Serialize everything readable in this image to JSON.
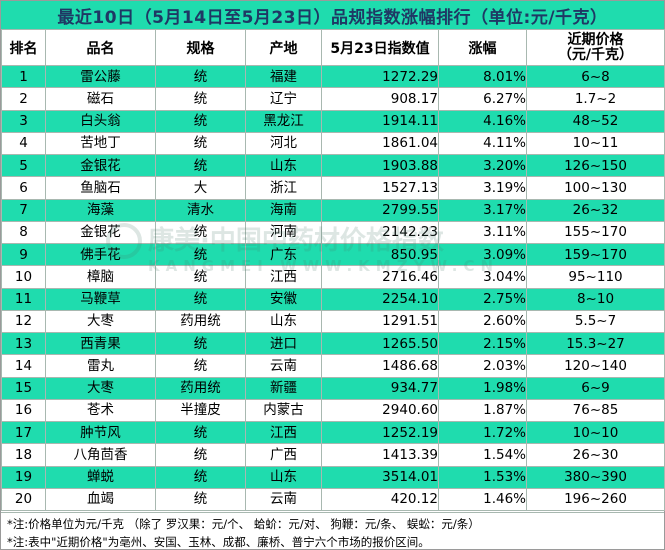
{
  "title": "最近10日（5月14日至5月23日）品规指数涨幅排行（单位:元/千克）",
  "headers": {
    "rank": "排名",
    "name": "品名",
    "spec": "规格",
    "origin": "产地",
    "index": "5月23日指数值",
    "change": "涨幅",
    "price_line1": "近期价格",
    "price_line2": "（元/千克）"
  },
  "rows": [
    {
      "rank": "1",
      "name": "雷公藤",
      "spec": "统",
      "origin": "福建",
      "index": "1272.29",
      "change": "8.01%",
      "price": "6~8"
    },
    {
      "rank": "2",
      "name": "磁石",
      "spec": "统",
      "origin": "辽宁",
      "index": "908.17",
      "change": "6.27%",
      "price": "1.7~2"
    },
    {
      "rank": "3",
      "name": "白头翁",
      "spec": "统",
      "origin": "黑龙江",
      "index": "1914.11",
      "change": "4.16%",
      "price": "48~52"
    },
    {
      "rank": "4",
      "name": "苦地丁",
      "spec": "统",
      "origin": "河北",
      "index": "1861.04",
      "change": "4.11%",
      "price": "10~11"
    },
    {
      "rank": "5",
      "name": "金银花",
      "spec": "统",
      "origin": "山东",
      "index": "1903.88",
      "change": "3.20%",
      "price": "126~150"
    },
    {
      "rank": "6",
      "name": "鱼脑石",
      "spec": "大",
      "origin": "浙江",
      "index": "1527.13",
      "change": "3.19%",
      "price": "100~130"
    },
    {
      "rank": "7",
      "name": "海藻",
      "spec": "清水",
      "origin": "海南",
      "index": "2799.55",
      "change": "3.17%",
      "price": "26~32"
    },
    {
      "rank": "8",
      "name": "金银花",
      "spec": "统",
      "origin": "河南",
      "index": "2142.23",
      "change": "3.11%",
      "price": "155~170"
    },
    {
      "rank": "9",
      "name": "佛手花",
      "spec": "统",
      "origin": "广东",
      "index": "850.95",
      "change": "3.09%",
      "price": "159~170"
    },
    {
      "rank": "10",
      "name": "樟脑",
      "spec": "统",
      "origin": "江西",
      "index": "2716.46",
      "change": "3.04%",
      "price": "95~110"
    },
    {
      "rank": "11",
      "name": "马鞭草",
      "spec": "统",
      "origin": "安徽",
      "index": "2254.10",
      "change": "2.75%",
      "price": "8~10"
    },
    {
      "rank": "12",
      "name": "大枣",
      "spec": "药用统",
      "origin": "山东",
      "index": "1291.51",
      "change": "2.60%",
      "price": "5.5~7"
    },
    {
      "rank": "13",
      "name": "西青果",
      "spec": "统",
      "origin": "进口",
      "index": "1265.50",
      "change": "2.15%",
      "price": "15.3~27"
    },
    {
      "rank": "14",
      "name": "雷丸",
      "spec": "统",
      "origin": "云南",
      "index": "1486.68",
      "change": "2.03%",
      "price": "120~140"
    },
    {
      "rank": "15",
      "name": "大枣",
      "spec": "药用统",
      "origin": "新疆",
      "index": "934.77",
      "change": "1.98%",
      "price": "6~9"
    },
    {
      "rank": "16",
      "name": "苍术",
      "spec": "半撞皮",
      "origin": "内蒙古",
      "index": "2940.60",
      "change": "1.87%",
      "price": "76~85"
    },
    {
      "rank": "17",
      "name": "肿节风",
      "spec": "统",
      "origin": "江西",
      "index": "1252.19",
      "change": "1.72%",
      "price": "10~10"
    },
    {
      "rank": "18",
      "name": "八角茴香",
      "spec": "统",
      "origin": "广西",
      "index": "1413.39",
      "change": "1.54%",
      "price": "26~30"
    },
    {
      "rank": "19",
      "name": "蝉蜕",
      "spec": "统",
      "origin": "山东",
      "index": "3514.01",
      "change": "1.53%",
      "price": "380~390"
    },
    {
      "rank": "20",
      "name": "血竭",
      "spec": "统",
      "origin": "云南",
      "index": "420.12",
      "change": "1.46%",
      "price": "196~260"
    }
  ],
  "notes": {
    "note1": "*注:价格单位为元/千克 （除了  罗汉果：元/个、  蛤蚧：元/对、  狗鞭：元/条、  蜈蚣：元/条）",
    "note2": "*注:表中\"近期价格\"为亳州、安国、玉林、成都、廉桥、普宁六个市场的报价区间。"
  },
  "watermark": {
    "line1": "康美·中国中药材价格指数",
    "line2": "KANGMEI  WWW.KMZYW.CN"
  },
  "colors": {
    "stripe": "#1fdcae",
    "title_text": "#1f3864",
    "grid": "#a8b8b0"
  }
}
